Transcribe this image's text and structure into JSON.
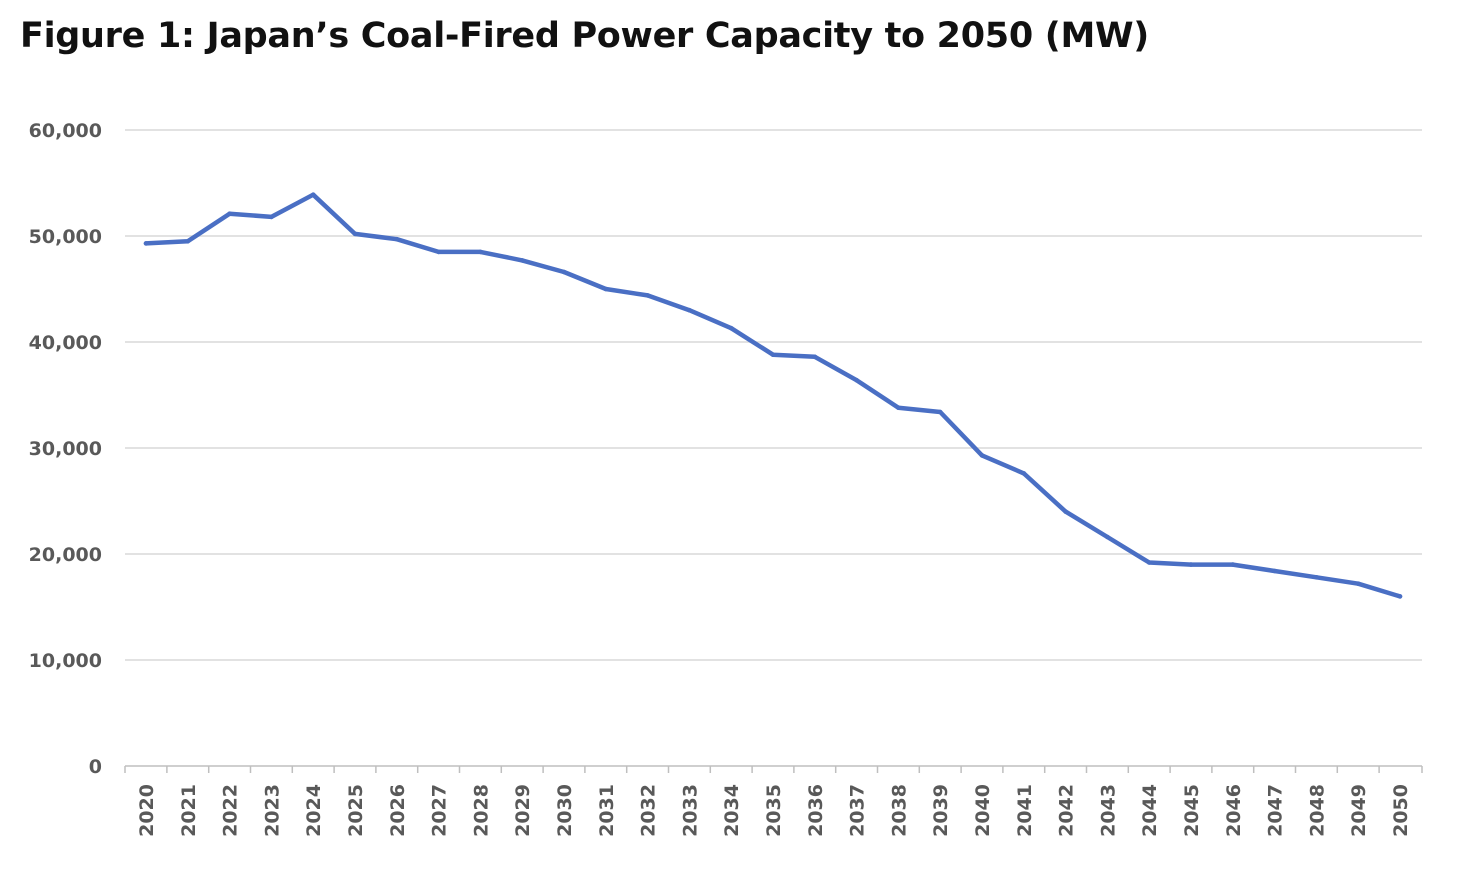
{
  "chart_data": {
    "type": "line",
    "title": "Figure 1: Japan’s Coal-Fired Power Capacity to 2050 (MW)",
    "xlabel": "",
    "ylabel": "",
    "ylim": [
      0,
      60000
    ],
    "y_ticks": [
      0,
      10000,
      20000,
      30000,
      40000,
      50000,
      60000
    ],
    "y_tick_labels": [
      "0",
      "10,000",
      "20,000",
      "30,000",
      "40,000",
      "50,000",
      "60,000"
    ],
    "grid": true,
    "legend": "none",
    "categories": [
      "2020",
      "2021",
      "2022",
      "2023",
      "2024",
      "2025",
      "2026",
      "2027",
      "2028",
      "2029",
      "2030",
      "2031",
      "2032",
      "2033",
      "2034",
      "2035",
      "2036",
      "2037",
      "2038",
      "2039",
      "2040",
      "2041",
      "2042",
      "2043",
      "2044",
      "2045",
      "2046",
      "2047",
      "2048",
      "2049",
      "2050"
    ],
    "series": [
      {
        "color": "#4a6fc4",
        "values": [
          49300,
          49500,
          52100,
          51800,
          53900,
          50200,
          49700,
          48500,
          48500,
          47700,
          46600,
          45000,
          44400,
          43000,
          41300,
          38800,
          38600,
          36400,
          33800,
          33400,
          29300,
          27600,
          24000,
          21600,
          19200,
          19000,
          19000,
          18400,
          17800,
          17200,
          16000
        ]
      }
    ]
  }
}
